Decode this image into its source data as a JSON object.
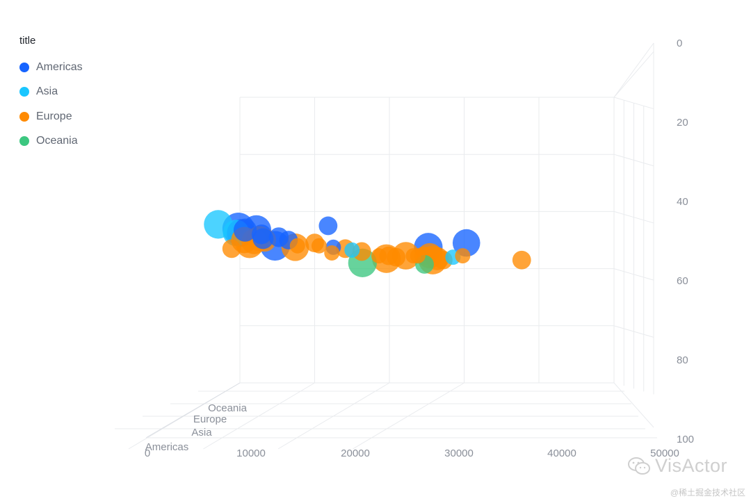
{
  "chart_data": {
    "type": "scatter",
    "projection": "3d",
    "legend": {
      "title": "title",
      "position": "top-left"
    },
    "x_axis": {
      "ticks": [
        "0",
        "10000",
        "20000",
        "30000",
        "40000",
        "50000"
      ],
      "range": [
        0,
        50000
      ]
    },
    "y_axis": {
      "ticks": [
        "0",
        "20",
        "40",
        "60",
        "80",
        "100"
      ],
      "range": [
        0,
        100
      ],
      "inverted": true,
      "position": "right"
    },
    "z_axis": {
      "categories": [
        "Americas",
        "Asia",
        "Europe",
        "Oceania"
      ]
    },
    "grid": true,
    "colors": {
      "Americas": "#1664FF",
      "Asia": "#1AC6FF",
      "Europe": "#FF8A00",
      "Oceania": "#3CC780"
    },
    "series": [
      {
        "name": "Americas",
        "points": [
          {
            "x": 9800,
            "y": 66,
            "size": 1.0
          },
          {
            "x": 10100,
            "y": 67.5,
            "size": 0.8
          },
          {
            "x": 10700,
            "y": 66.5,
            "size": 0.6
          },
          {
            "x": 12200,
            "y": 66.5,
            "size": 0.9
          },
          {
            "x": 12900,
            "y": 68,
            "size": 0.45
          },
          {
            "x": 13100,
            "y": 69.5,
            "size": 0.5
          },
          {
            "x": 14700,
            "y": 72,
            "size": 0.9
          },
          {
            "x": 15200,
            "y": 69,
            "size": 0.45
          },
          {
            "x": 16500,
            "y": 70,
            "size": 0.4
          },
          {
            "x": 21800,
            "y": 65,
            "size": 0.4
          },
          {
            "x": 22500,
            "y": 72.5,
            "size": 0.25
          },
          {
            "x": 35200,
            "y": 72.5,
            "size": 0.85
          },
          {
            "x": 40300,
            "y": 71,
            "size": 0.8
          }
        ]
      },
      {
        "name": "Asia",
        "points": [
          {
            "x": 7100,
            "y": 64.5,
            "size": 0.85
          },
          {
            "x": 9500,
            "y": 67.5,
            "size": 0.75
          },
          {
            "x": 25000,
            "y": 73.5,
            "size": 0.25
          },
          {
            "x": 38500,
            "y": 76,
            "size": 0.25
          }
        ]
      },
      {
        "name": "Europe",
        "points": [
          {
            "x": 8900,
            "y": 73,
            "size": 0.4
          },
          {
            "x": 10600,
            "y": 70,
            "size": 0.75
          },
          {
            "x": 11300,
            "y": 71.5,
            "size": 0.8
          },
          {
            "x": 11900,
            "y": 70.5,
            "size": 0.7
          },
          {
            "x": 12600,
            "y": 69.5,
            "size": 0.7
          },
          {
            "x": 13300,
            "y": 70,
            "size": 0.6
          },
          {
            "x": 17400,
            "y": 72.5,
            "size": 0.8
          },
          {
            "x": 17700,
            "y": 72,
            "size": 0.25
          },
          {
            "x": 20000,
            "y": 71,
            "size": 0.4
          },
          {
            "x": 20600,
            "y": 72,
            "size": 0.25
          },
          {
            "x": 22300,
            "y": 74.5,
            "size": 0.25
          },
          {
            "x": 24100,
            "y": 73,
            "size": 0.4
          },
          {
            "x": 26300,
            "y": 74,
            "size": 0.4
          },
          {
            "x": 28600,
            "y": 75.5,
            "size": 0.25
          },
          {
            "x": 29600,
            "y": 76.5,
            "size": 0.85
          },
          {
            "x": 29900,
            "y": 75.5,
            "size": 0.4
          },
          {
            "x": 30900,
            "y": 76,
            "size": 0.4
          },
          {
            "x": 32200,
            "y": 75.5,
            "size": 0.8
          },
          {
            "x": 33200,
            "y": 75.5,
            "size": 0.25
          },
          {
            "x": 33800,
            "y": 75.5,
            "size": 0.25
          },
          {
            "x": 34600,
            "y": 75.5,
            "size": 0.4
          },
          {
            "x": 35400,
            "y": 75.5,
            "size": 0.7
          },
          {
            "x": 35800,
            "y": 77,
            "size": 0.85
          },
          {
            "x": 36400,
            "y": 76.5,
            "size": 0.6
          },
          {
            "x": 37200,
            "y": 77,
            "size": 0.4
          },
          {
            "x": 39800,
            "y": 75.5,
            "size": 0.25
          },
          {
            "x": 47700,
            "y": 77,
            "size": 0.4
          }
        ]
      },
      {
        "name": "Oceania",
        "points": [
          {
            "x": 26400,
            "y": 78,
            "size": 0.85
          },
          {
            "x": 34700,
            "y": 78.5,
            "size": 0.4
          }
        ]
      }
    ]
  },
  "watermark": {
    "text": "VisActor",
    "sub": "@稀土掘金技术社区",
    "icon": "wechat-icon"
  }
}
